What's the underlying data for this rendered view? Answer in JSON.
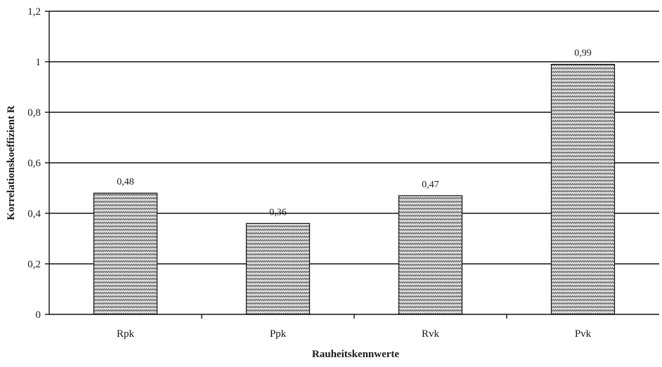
{
  "chart_data": {
    "type": "bar",
    "categories": [
      "Rpk",
      "Ppk",
      "Rvk",
      "Pvk"
    ],
    "values": [
      0.48,
      0.36,
      0.47,
      0.99
    ],
    "data_labels": [
      "0,48",
      "0,36",
      "0,47",
      "0,99"
    ],
    "ylim": [
      0,
      1.2
    ],
    "yticks": [
      0,
      0.2,
      0.4,
      0.6,
      0.8,
      1,
      1.2
    ],
    "ytick_labels": [
      "0",
      "0,2",
      "0,4",
      "0,6",
      "0,8",
      "1",
      "1,2"
    ],
    "xlabel": "Rauheitskennwerte",
    "ylabel": "Korrelationskoeffizient R",
    "grid": true,
    "legend": "none",
    "bar_fill": "hatched-zigzag",
    "colors": {
      "bar_fill": "#d4d4d4",
      "bar_hatch": "#555555",
      "bar_edge": "#111111",
      "grid": "#111111",
      "axis": "#111111"
    }
  }
}
